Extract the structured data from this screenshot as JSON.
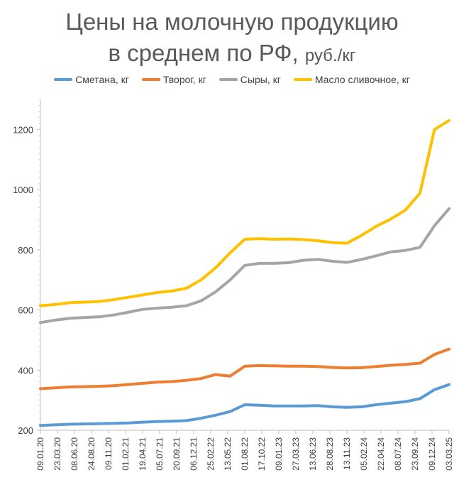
{
  "chart_data": {
    "type": "line",
    "title": "Цены на молочную продукцию",
    "subtitle_main": "в среднем по РФ,",
    "subtitle_unit": "руб./кг",
    "ylim": [
      200,
      1300
    ],
    "y_ticks": [
      200,
      400,
      600,
      800,
      1000,
      1200
    ],
    "grid": false,
    "legend_position": "top",
    "x_tick_labels": [
      "09.01.20",
      "23.03.20",
      "08.06.20",
      "24.08.20",
      "09.11.20",
      "01.02.21",
      "19.04.21",
      "05.07.21",
      "20.09.21",
      "06.12.21",
      "25.02.22",
      "13.05.22",
      "01.08.22",
      "17.10.22",
      "09.01.23",
      "27.03.23",
      "13.06.23",
      "28.08.23",
      "13.11.23",
      "05.02.24",
      "22.04.24",
      "08.07.24",
      "23.09.24",
      "09.12.24",
      "03.03.25"
    ],
    "series": [
      {
        "name": "Сметана, кг",
        "color": "#5B9BD5",
        "values": [
          216,
          218,
          220,
          221,
          222,
          223,
          224,
          227,
          229,
          230,
          232,
          240,
          250,
          262,
          285,
          283,
          281,
          281,
          281,
          282,
          278,
          276,
          278,
          285,
          290,
          295,
          305,
          335,
          352
        ]
      },
      {
        "name": "Творог, кг",
        "color": "#ED7D31",
        "values": [
          338,
          341,
          344,
          345,
          346,
          348,
          352,
          356,
          360,
          362,
          366,
          372,
          385,
          380,
          413,
          415,
          414,
          413,
          413,
          412,
          409,
          407,
          408,
          412,
          416,
          419,
          423,
          452,
          470
        ]
      },
      {
        "name": "Сыры, кг",
        "color": "#A5A5A5",
        "values": [
          558,
          566,
          572,
          575,
          577,
          583,
          592,
          602,
          606,
          609,
          614,
          630,
          660,
          700,
          748,
          755,
          755,
          757,
          765,
          768,
          762,
          758,
          768,
          780,
          793,
          798,
          808,
          880,
          937
        ]
      },
      {
        "name": "Масло сливочное, кг",
        "color": "#FFC000",
        "values": [
          614,
          618,
          624,
          626,
          628,
          634,
          642,
          650,
          658,
          663,
          672,
          700,
          740,
          790,
          835,
          837,
          835,
          836,
          834,
          830,
          824,
          822,
          848,
          878,
          902,
          932,
          988,
          1200,
          1230
        ]
      }
    ]
  }
}
